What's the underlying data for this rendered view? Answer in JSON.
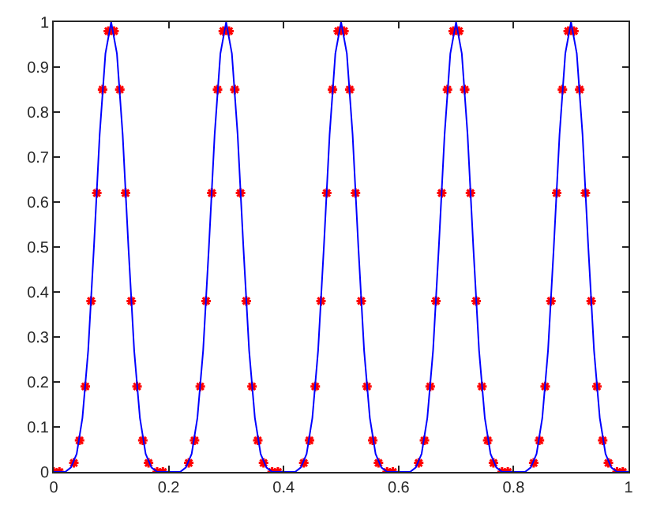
{
  "chart_data": {
    "type": "line",
    "xlim": [
      0,
      1
    ],
    "ylim": [
      0,
      1
    ],
    "xticks": [
      0,
      0.2,
      0.4,
      0.6,
      0.8,
      1
    ],
    "yticks": [
      0,
      0.1,
      0.2,
      0.3,
      0.4,
      0.5,
      0.6,
      0.7,
      0.8,
      0.9,
      1
    ],
    "grid": false,
    "legend": false,
    "series": [
      {
        "color": "#0000ff",
        "marker": "none",
        "line_style": "solid",
        "x": [
          0,
          0.01,
          0.02,
          0.03,
          0.04,
          0.05,
          0.06,
          0.07,
          0.08,
          0.09,
          0.1,
          0.11,
          0.12,
          0.13,
          0.14,
          0.15,
          0.16,
          0.17,
          0.18,
          0.19,
          0.2,
          0.21,
          0.22,
          0.23,
          0.24,
          0.25,
          0.26,
          0.27,
          0.28,
          0.29,
          0.3,
          0.31,
          0.32,
          0.33,
          0.34,
          0.35,
          0.36,
          0.37,
          0.38,
          0.39,
          0.4,
          0.41,
          0.42,
          0.43,
          0.44,
          0.45,
          0.46,
          0.47,
          0.48,
          0.49,
          0.5,
          0.51,
          0.52,
          0.53,
          0.54,
          0.55,
          0.56,
          0.57,
          0.58,
          0.59,
          0.6,
          0.61,
          0.62,
          0.63,
          0.64,
          0.65,
          0.66,
          0.67,
          0.68,
          0.69,
          0.7,
          0.71,
          0.72,
          0.73,
          0.74,
          0.75,
          0.76,
          0.77,
          0.78,
          0.79,
          0.8,
          0.81,
          0.82,
          0.83,
          0.84,
          0.85,
          0.86,
          0.87,
          0.88,
          0.89,
          0.9,
          0.91,
          0.92,
          0.93,
          0.94,
          0.95,
          0.96,
          0.97,
          0.98,
          0.99,
          1
        ],
        "values": [
          0,
          0,
          0,
          0.01,
          0.04,
          0.12,
          0.27,
          0.5,
          0.75,
          0.93,
          1,
          0.93,
          0.75,
          0.5,
          0.27,
          0.12,
          0.04,
          0.01,
          0,
          0,
          0,
          0,
          0,
          0.01,
          0.04,
          0.12,
          0.27,
          0.5,
          0.75,
          0.93,
          1,
          0.93,
          0.75,
          0.5,
          0.27,
          0.12,
          0.04,
          0.01,
          0,
          0,
          0,
          0,
          0,
          0.01,
          0.04,
          0.12,
          0.27,
          0.5,
          0.75,
          0.93,
          1,
          0.93,
          0.75,
          0.5,
          0.27,
          0.12,
          0.04,
          0.01,
          0,
          0,
          0,
          0,
          0,
          0.01,
          0.04,
          0.12,
          0.27,
          0.5,
          0.75,
          0.93,
          1,
          0.93,
          0.75,
          0.5,
          0.27,
          0.12,
          0.04,
          0.01,
          0,
          0,
          0,
          0,
          0,
          0.01,
          0.04,
          0.12,
          0.27,
          0.5,
          0.75,
          0.93,
          1,
          0.93,
          0.75,
          0.5,
          0.27,
          0.12,
          0.04,
          0.01,
          0,
          0,
          0
        ]
      },
      {
        "type": "scatter",
        "color": "#ff0000",
        "marker": "cross",
        "x": [
          0,
          0.01,
          0.035,
          0.045,
          0.055,
          0.065,
          0.075,
          0.085,
          0.095,
          0.105,
          0.115,
          0.125,
          0.135,
          0.145,
          0.155,
          0.165,
          0.18,
          0.19,
          0.235,
          0.245,
          0.255,
          0.265,
          0.275,
          0.285,
          0.295,
          0.305,
          0.315,
          0.325,
          0.335,
          0.345,
          0.355,
          0.365,
          0.38,
          0.39,
          0.435,
          0.445,
          0.455,
          0.465,
          0.475,
          0.485,
          0.495,
          0.505,
          0.515,
          0.525,
          0.535,
          0.545,
          0.555,
          0.565,
          0.58,
          0.59,
          0.635,
          0.645,
          0.655,
          0.665,
          0.675,
          0.685,
          0.695,
          0.705,
          0.715,
          0.725,
          0.735,
          0.745,
          0.755,
          0.765,
          0.78,
          0.79,
          0.835,
          0.845,
          0.855,
          0.865,
          0.875,
          0.885,
          0.895,
          0.905,
          0.915,
          0.925,
          0.935,
          0.945,
          0.955,
          0.965,
          0.98,
          0.99
        ],
        "values": [
          0,
          0,
          0.02,
          0.07,
          0.19,
          0.38,
          0.62,
          0.85,
          0.98,
          0.98,
          0.85,
          0.62,
          0.38,
          0.19,
          0.07,
          0.02,
          0,
          0,
          0.02,
          0.07,
          0.19,
          0.38,
          0.62,
          0.85,
          0.98,
          0.98,
          0.85,
          0.62,
          0.38,
          0.19,
          0.07,
          0.02,
          0,
          0,
          0.02,
          0.07,
          0.19,
          0.38,
          0.62,
          0.85,
          0.98,
          0.98,
          0.85,
          0.62,
          0.38,
          0.19,
          0.07,
          0.02,
          0,
          0,
          0.02,
          0.07,
          0.19,
          0.38,
          0.62,
          0.85,
          0.98,
          0.98,
          0.85,
          0.62,
          0.38,
          0.19,
          0.07,
          0.02,
          0,
          0,
          0.02,
          0.07,
          0.19,
          0.38,
          0.62,
          0.85,
          0.98,
          0.98,
          0.85,
          0.62,
          0.38,
          0.19,
          0.07,
          0.02,
          0,
          0
        ]
      }
    ]
  }
}
